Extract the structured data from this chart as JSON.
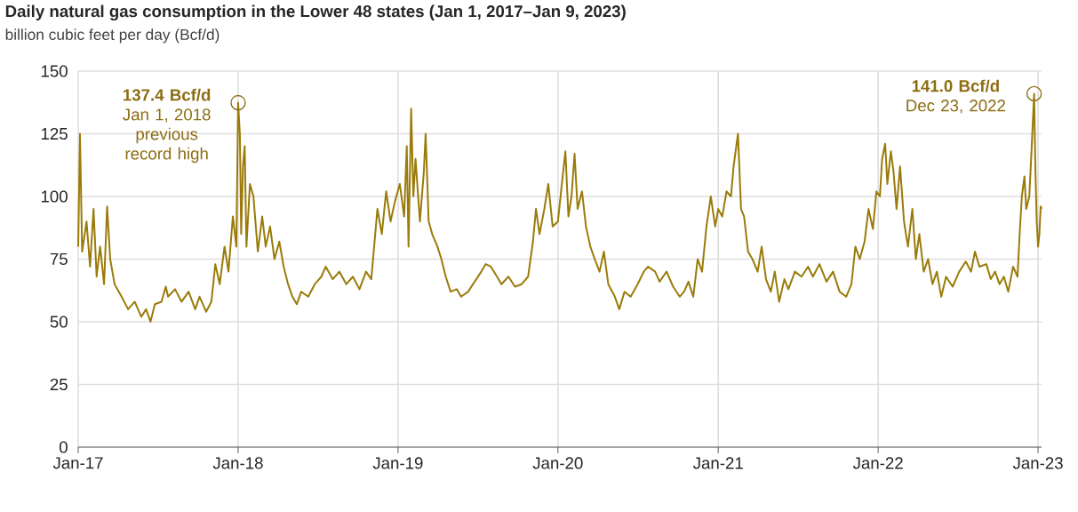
{
  "chart_data": {
    "type": "line",
    "title": "Daily natural gas consumption in the Lower 48 states (Jan 1, 2017–Jan 9, 2023)",
    "subtitle": "billion cubic feet per day (Bcf/d)",
    "x": [
      "2017-01-01",
      "2017-01-05",
      "2017-01-10",
      "2017-01-20",
      "2017-01-28",
      "2017-02-05",
      "2017-02-12",
      "2017-02-20",
      "2017-03-01",
      "2017-03-08",
      "2017-03-15",
      "2017-03-25",
      "2017-04-10",
      "2017-04-25",
      "2017-05-10",
      "2017-05-25",
      "2017-06-05",
      "2017-06-15",
      "2017-06-25",
      "2017-07-10",
      "2017-07-20",
      "2017-07-25",
      "2017-08-10",
      "2017-08-25",
      "2017-09-10",
      "2017-09-25",
      "2017-10-05",
      "2017-10-20",
      "2017-11-01",
      "2017-11-10",
      "2017-11-20",
      "2017-12-01",
      "2017-12-10",
      "2017-12-20",
      "2017-12-28",
      "2018-01-01",
      "2018-01-05",
      "2018-01-08",
      "2018-01-12",
      "2018-01-16",
      "2018-01-20",
      "2018-01-28",
      "2018-02-05",
      "2018-02-15",
      "2018-02-25",
      "2018-03-05",
      "2018-03-15",
      "2018-03-25",
      "2018-04-05",
      "2018-04-15",
      "2018-04-25",
      "2018-05-05",
      "2018-05-15",
      "2018-05-25",
      "2018-06-10",
      "2018-06-25",
      "2018-07-10",
      "2018-07-20",
      "2018-08-05",
      "2018-08-20",
      "2018-09-05",
      "2018-09-20",
      "2018-10-05",
      "2018-10-20",
      "2018-11-01",
      "2018-11-10",
      "2018-11-15",
      "2018-11-25",
      "2018-12-05",
      "2018-12-15",
      "2018-12-25",
      "2019-01-05",
      "2019-01-15",
      "2019-01-21",
      "2019-01-25",
      "2019-01-31",
      "2019-02-05",
      "2019-02-10",
      "2019-02-20",
      "2019-03-01",
      "2019-03-05",
      "2019-03-12",
      "2019-03-20",
      "2019-04-01",
      "2019-04-10",
      "2019-04-20",
      "2019-05-01",
      "2019-05-15",
      "2019-05-25",
      "2019-06-10",
      "2019-06-25",
      "2019-07-10",
      "2019-07-20",
      "2019-08-01",
      "2019-08-15",
      "2019-08-25",
      "2019-09-10",
      "2019-09-25",
      "2019-10-10",
      "2019-10-25",
      "2019-11-05",
      "2019-11-12",
      "2019-11-20",
      "2019-12-01",
      "2019-12-10",
      "2019-12-20",
      "2020-01-01",
      "2020-01-10",
      "2020-01-18",
      "2020-01-25",
      "2020-02-01",
      "2020-02-08",
      "2020-02-15",
      "2020-02-25",
      "2020-03-05",
      "2020-03-15",
      "2020-03-25",
      "2020-04-05",
      "2020-04-15",
      "2020-04-25",
      "2020-05-10",
      "2020-05-20",
      "2020-06-01",
      "2020-06-15",
      "2020-07-01",
      "2020-07-15",
      "2020-07-25",
      "2020-08-10",
      "2020-08-20",
      "2020-09-05",
      "2020-09-20",
      "2020-10-05",
      "2020-10-15",
      "2020-10-25",
      "2020-11-05",
      "2020-11-15",
      "2020-11-25",
      "2020-12-05",
      "2020-12-15",
      "2020-12-25",
      "2021-01-01",
      "2021-01-10",
      "2021-01-20",
      "2021-01-30",
      "2021-02-05",
      "2021-02-15",
      "2021-02-22",
      "2021-03-01",
      "2021-03-10",
      "2021-03-20",
      "2021-04-01",
      "2021-04-10",
      "2021-04-20",
      "2021-05-01",
      "2021-05-10",
      "2021-05-20",
      "2021-06-01",
      "2021-06-10",
      "2021-06-25",
      "2021-07-10",
      "2021-07-25",
      "2021-08-05",
      "2021-08-20",
      "2021-09-05",
      "2021-09-20",
      "2021-10-05",
      "2021-10-20",
      "2021-11-01",
      "2021-11-10",
      "2021-11-20",
      "2021-12-01",
      "2021-12-10",
      "2021-12-20",
      "2021-12-28",
      "2022-01-05",
      "2022-01-10",
      "2022-01-17",
      "2022-01-22",
      "2022-01-30",
      "2022-02-05",
      "2022-02-12",
      "2022-02-20",
      "2022-03-01",
      "2022-03-10",
      "2022-03-20",
      "2022-03-28",
      "2022-04-05",
      "2022-04-15",
      "2022-04-25",
      "2022-05-05",
      "2022-05-15",
      "2022-05-25",
      "2022-06-05",
      "2022-06-20",
      "2022-07-05",
      "2022-07-20",
      "2022-08-01",
      "2022-08-10",
      "2022-08-20",
      "2022-09-05",
      "2022-09-15",
      "2022-09-25",
      "2022-10-05",
      "2022-10-15",
      "2022-10-25",
      "2022-11-05",
      "2022-11-15",
      "2022-11-20",
      "2022-11-25",
      "2022-12-01",
      "2022-12-05",
      "2022-12-12",
      "2022-12-17",
      "2022-12-23",
      "2022-12-26",
      "2022-12-29",
      "2023-01-01",
      "2023-01-04",
      "2023-01-07",
      "2023-01-09"
    ],
    "series": [
      {
        "color": "#9a7b0a",
        "values": [
          80,
          125,
          78,
          90,
          72,
          95,
          68,
          80,
          65,
          96,
          75,
          65,
          60,
          55,
          58,
          52,
          55,
          50,
          57,
          58,
          64,
          60,
          63,
          58,
          62,
          55,
          60,
          54,
          58,
          73,
          65,
          80,
          70,
          92,
          80,
          137.4,
          125,
          85,
          112,
          120,
          80,
          105,
          100,
          78,
          92,
          80,
          88,
          75,
          82,
          72,
          65,
          60,
          57,
          62,
          60,
          65,
          68,
          72,
          67,
          70,
          65,
          68,
          63,
          70,
          67,
          85,
          95,
          85,
          102,
          90,
          98,
          105,
          92,
          120,
          80,
          135,
          100,
          115,
          90,
          110,
          125,
          90,
          85,
          80,
          75,
          68,
          62,
          63,
          60,
          62,
          66,
          70,
          73,
          72,
          68,
          65,
          68,
          64,
          65,
          68,
          82,
          95,
          85,
          95,
          105,
          88,
          90,
          105,
          118,
          92,
          100,
          117,
          95,
          102,
          88,
          80,
          75,
          70,
          78,
          65,
          60,
          55,
          62,
          60,
          65,
          70,
          72,
          70,
          66,
          70,
          64,
          60,
          62,
          66,
          60,
          75,
          70,
          88,
          100,
          88,
          95,
          92,
          102,
          100,
          112,
          125,
          95,
          92,
          78,
          75,
          70,
          80,
          67,
          62,
          70,
          58,
          67,
          63,
          70,
          68,
          72,
          68,
          73,
          66,
          70,
          62,
          60,
          65,
          80,
          75,
          82,
          95,
          87,
          102,
          100,
          115,
          121,
          105,
          118,
          110,
          95,
          112,
          90,
          80,
          95,
          75,
          85,
          70,
          75,
          65,
          70,
          60,
          68,
          64,
          70,
          74,
          70,
          78,
          72,
          73,
          67,
          70,
          65,
          68,
          62,
          72,
          68,
          85,
          100,
          108,
          95,
          100,
          118,
          141.0,
          110,
          90,
          80,
          85,
          96,
          95
        ]
      }
    ],
    "xlim": [
      "2017-01-01",
      "2023-01-09"
    ],
    "xticks": [
      {
        "value": "2017-01-01",
        "label": "Jan-17"
      },
      {
        "value": "2018-01-01",
        "label": "Jan-18"
      },
      {
        "value": "2019-01-01",
        "label": "Jan-19"
      },
      {
        "value": "2020-01-01",
        "label": "Jan-20"
      },
      {
        "value": "2021-01-01",
        "label": "Jan-21"
      },
      {
        "value": "2022-01-01",
        "label": "Jan-22"
      },
      {
        "value": "2023-01-01",
        "label": "Jan-23"
      }
    ],
    "ylim": [
      0,
      150
    ],
    "yticks": [
      0,
      25,
      50,
      75,
      100,
      125,
      150
    ],
    "grid": true,
    "annotations": [
      {
        "text": "**137.4 Bcf/d** Jan 1, 2018 previous record high",
        "x": "2018-01-01",
        "y": 137.4
      },
      {
        "text": "**141.0 Bcf/d** Dec 23, 2022",
        "x": "2022-12-23",
        "y": 141.0
      }
    ]
  }
}
